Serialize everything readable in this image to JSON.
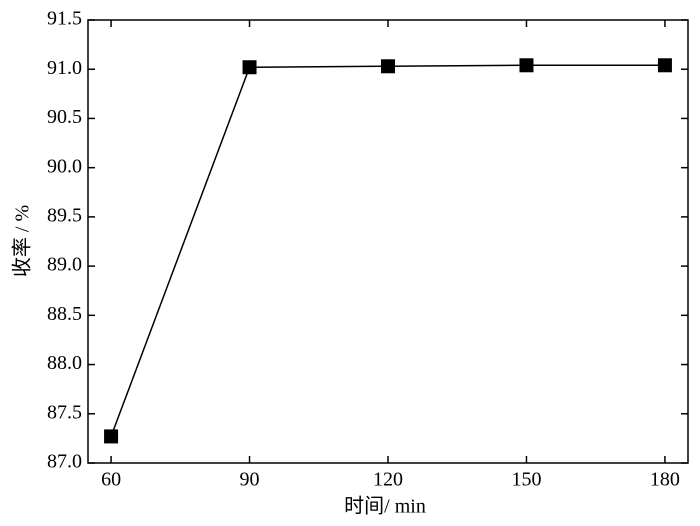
{
  "chart_data": {
    "type": "line",
    "x_label": "时间/ min",
    "y_label": "收率 / %",
    "x": [
      60,
      90,
      120,
      150,
      180
    ],
    "series": [
      {
        "color": "#000000",
        "values": [
          87.27,
          91.02,
          91.03,
          91.04,
          91.04
        ]
      }
    ],
    "xlim": [
      55,
      185
    ],
    "xticks": [
      60,
      90,
      120,
      150,
      180
    ],
    "ylim": [
      87.0,
      91.5
    ],
    "yticks": [
      {
        "value": 87.0,
        "label": "87.0"
      },
      {
        "value": 87.5,
        "label": "87.5"
      },
      {
        "value": 88.0,
        "label": "88.0"
      },
      {
        "value": 88.5,
        "label": "88.5"
      },
      {
        "value": 89.0,
        "label": "89.0"
      },
      {
        "value": 89.5,
        "label": "89.5"
      },
      {
        "value": 90.0,
        "label": "90.0"
      },
      {
        "value": 90.5,
        "label": "90.5"
      },
      {
        "value": 91.0,
        "label": "91.0"
      },
      {
        "value": 91.5,
        "label": "91.5"
      }
    ],
    "grid": false
  }
}
